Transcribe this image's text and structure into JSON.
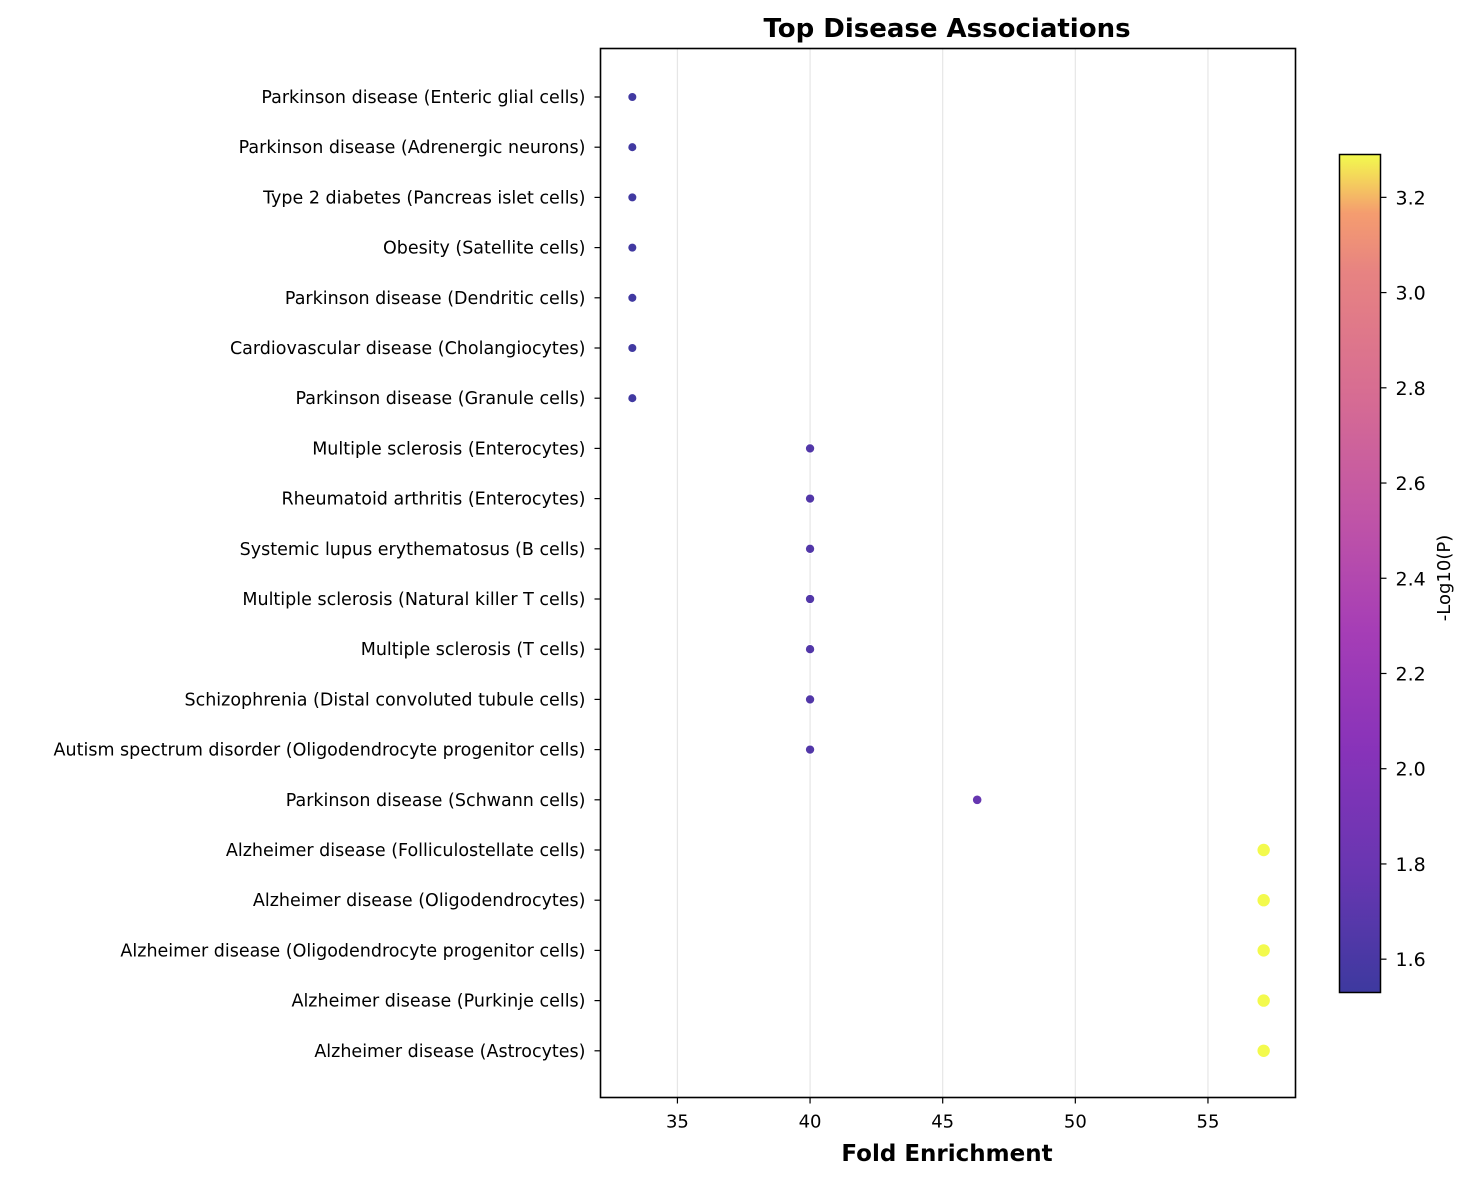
{
  "chart_data": {
    "type": "scatter",
    "title": "Top Disease Associations",
    "xlabel": "Fold Enrichment",
    "ylabel": "",
    "xlim": [
      32.1,
      58.3
    ],
    "xticks": [
      35,
      40,
      45,
      50,
      55
    ],
    "grid": "vertical",
    "colorbar": {
      "label": "-Log10(P)",
      "colormap": "plasma",
      "range": [
        1.53,
        3.29
      ],
      "ticks": [
        1.6,
        1.8,
        2.0,
        2.2,
        2.4,
        2.6,
        2.8,
        3.0,
        3.2
      ]
    },
    "points": [
      {
        "label": "Parkinson disease (Enteric glial cells)",
        "x": 33.3,
        "p": 1.55
      },
      {
        "label": "Parkinson disease (Adrenergic neurons)",
        "x": 33.3,
        "p": 1.55
      },
      {
        "label": "Type 2 diabetes (Pancreas islet cells)",
        "x": 33.3,
        "p": 1.55
      },
      {
        "label": "Obesity (Satellite cells)",
        "x": 33.3,
        "p": 1.55
      },
      {
        "label": "Parkinson disease (Dendritic cells)",
        "x": 33.3,
        "p": 1.55
      },
      {
        "label": "Cardiovascular disease (Cholangiocytes)",
        "x": 33.3,
        "p": 1.55
      },
      {
        "label": "Parkinson disease (Granule cells)",
        "x": 33.3,
        "p": 1.55
      },
      {
        "label": "Multiple sclerosis (Enterocytes)",
        "x": 40.0,
        "p": 1.66
      },
      {
        "label": "Rheumatoid arthritis (Enterocytes)",
        "x": 40.0,
        "p": 1.66
      },
      {
        "label": "Systemic lupus erythematosus (B cells)",
        "x": 40.0,
        "p": 1.66
      },
      {
        "label": "Multiple sclerosis (Natural killer T cells)",
        "x": 40.0,
        "p": 1.66
      },
      {
        "label": "Multiple sclerosis (T cells)",
        "x": 40.0,
        "p": 1.66
      },
      {
        "label": "Schizophrenia (Distal convoluted tubule cells)",
        "x": 40.0,
        "p": 1.66
      },
      {
        "label": "Autism spectrum disorder (Oligodendrocyte progenitor cells)",
        "x": 40.0,
        "p": 1.66
      },
      {
        "label": "Parkinson disease (Schwann cells)",
        "x": 46.3,
        "p": 1.77
      },
      {
        "label": "Alzheimer disease (Folliculostellate cells)",
        "x": 57.1,
        "p": 3.29
      },
      {
        "label": "Alzheimer disease (Oligodendrocytes)",
        "x": 57.1,
        "p": 3.29
      },
      {
        "label": "Alzheimer disease (Oligodendrocyte progenitor cells)",
        "x": 57.1,
        "p": 3.29
      },
      {
        "label": "Alzheimer disease (Purkinje cells)",
        "x": 57.1,
        "p": 3.29
      },
      {
        "label": "Alzheimer disease (Astrocytes)",
        "x": 57.1,
        "p": 3.29
      }
    ]
  }
}
